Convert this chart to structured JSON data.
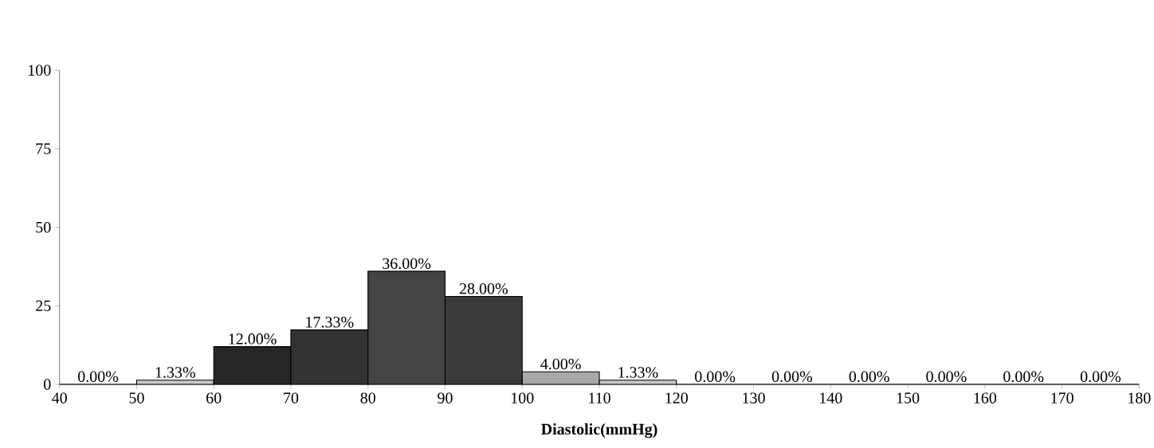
{
  "chart_data": {
    "type": "histogram",
    "xlabel": "**Diastolic(mmHg)**",
    "bins": [
      40,
      50,
      60,
      70,
      80,
      90,
      100,
      110,
      120,
      130,
      140,
      150,
      160,
      170,
      180
    ],
    "values": [
      0,
      1.33,
      12,
      17.33,
      36,
      28,
      4,
      1.33,
      0,
      0,
      0,
      0,
      0,
      0
    ],
    "value_labels": [
      "0.00%",
      "1.33%",
      "12.00%",
      "17.33%",
      "36.00%",
      "28.00%",
      "4.00%",
      "1.33%",
      "0.00%",
      "0.00%",
      "0.00%",
      "0.00%",
      "0.00%",
      "0.00%"
    ],
    "colors": [
      "#c8c8c8",
      "#c8c8c8",
      "#262626",
      "#333333",
      "#444444",
      "#3a3a3a",
      "#a8a8a8",
      "#c8c8c8",
      "#c8c8c8",
      "#c8c8c8",
      "#c8c8c8",
      "#c8c8c8",
      "#c8c8c8",
      "#c8c8c8"
    ],
    "xlim": [
      40,
      180
    ],
    "xticks": [
      40,
      50,
      60,
      70,
      80,
      90,
      100,
      110,
      120,
      130,
      140,
      150,
      160,
      170,
      180
    ],
    "ylim": [
      0,
      100
    ],
    "yticks": [
      0,
      25,
      50,
      75,
      100
    ],
    "grid": false
  }
}
